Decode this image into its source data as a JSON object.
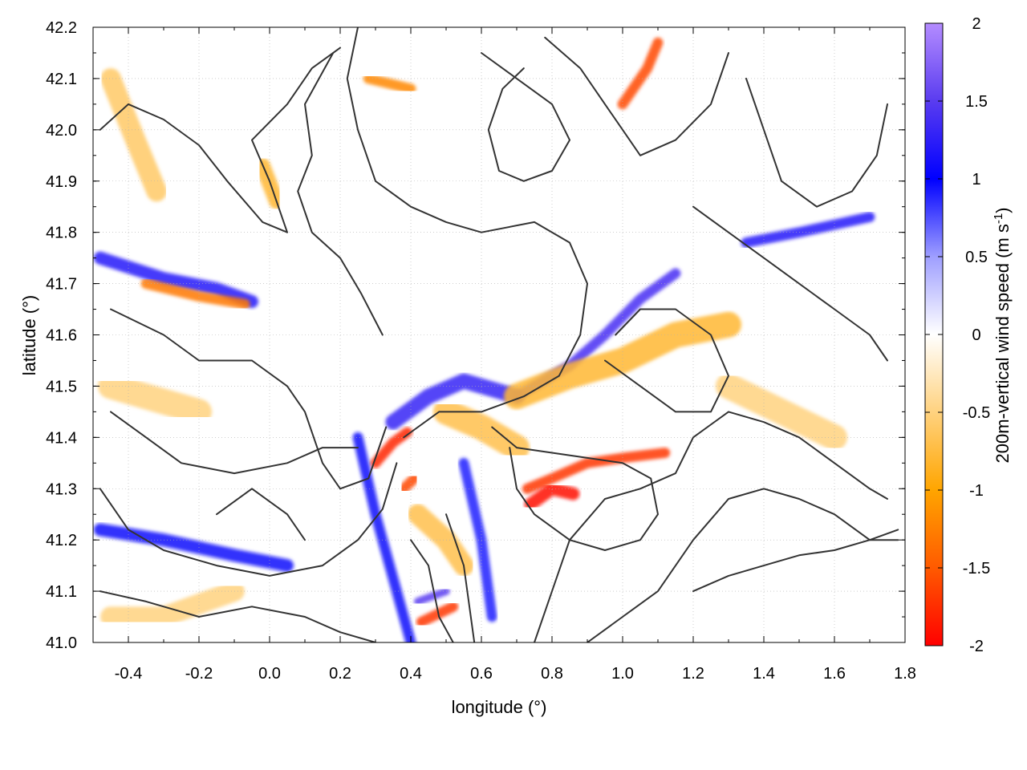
{
  "chart_data": {
    "type": "heatmap",
    "title": "",
    "xlabel": "longitude (°)",
    "ylabel": "latitude (°)",
    "colorbar_label_main": "200m-vertical wind speed (m s",
    "colorbar_label_sup": "-1",
    "colorbar_label_close": ")",
    "xlim": [
      -0.5,
      1.8
    ],
    "ylim": [
      41.0,
      42.2
    ],
    "x_ticks": [
      {
        "value": -0.4,
        "label": "-0.4"
      },
      {
        "value": -0.2,
        "label": "-0.2"
      },
      {
        "value": 0.0,
        "label": "0.0"
      },
      {
        "value": 0.2,
        "label": "0.2"
      },
      {
        "value": 0.4,
        "label": "0.4"
      },
      {
        "value": 0.6,
        "label": "0.6"
      },
      {
        "value": 0.8,
        "label": "0.8"
      },
      {
        "value": 1.0,
        "label": "1.0"
      },
      {
        "value": 1.2,
        "label": "1.2"
      },
      {
        "value": 1.4,
        "label": "1.4"
      },
      {
        "value": 1.6,
        "label": "1.6"
      },
      {
        "value": 1.8,
        "label": "1.8"
      }
    ],
    "y_ticks": [
      {
        "value": 41.0,
        "label": "41.0"
      },
      {
        "value": 41.1,
        "label": "41.1"
      },
      {
        "value": 41.2,
        "label": "41.2"
      },
      {
        "value": 41.3,
        "label": "41.3"
      },
      {
        "value": 41.4,
        "label": "41.4"
      },
      {
        "value": 41.5,
        "label": "41.5"
      },
      {
        "value": 41.6,
        "label": "41.6"
      },
      {
        "value": 41.7,
        "label": "41.7"
      },
      {
        "value": 41.8,
        "label": "41.8"
      },
      {
        "value": 41.9,
        "label": "41.9"
      },
      {
        "value": 42.0,
        "label": "42.0"
      },
      {
        "value": 42.1,
        "label": "42.1"
      },
      {
        "value": 42.2,
        "label": "42.2"
      }
    ],
    "colorbar_range": [
      -2,
      2
    ],
    "colorbar_ticks": [
      {
        "value": 2,
        "label": "2"
      },
      {
        "value": 1.5,
        "label": "1.5"
      },
      {
        "value": 1,
        "label": "1"
      },
      {
        "value": 0.5,
        "label": "0.5"
      },
      {
        "value": 0,
        "label": "0"
      },
      {
        "value": -0.5,
        "label": "-0.5"
      },
      {
        "value": -1,
        "label": "-1"
      },
      {
        "value": -1.5,
        "label": "-1.5"
      },
      {
        "value": -2,
        "label": "-2"
      }
    ],
    "colormap": [
      {
        "value": -2,
        "color": "#ff0000"
      },
      {
        "value": -1.5,
        "color": "#ff5a00"
      },
      {
        "value": -1,
        "color": "#ffa500"
      },
      {
        "value": -0.5,
        "color": "#ffd27f"
      },
      {
        "value": 0,
        "color": "#ffffff"
      },
      {
        "value": 0.5,
        "color": "#9e9eff"
      },
      {
        "value": 1,
        "color": "#0000ff"
      },
      {
        "value": 1.5,
        "color": "#5a3cf0"
      },
      {
        "value": 2,
        "color": "#b48cff"
      }
    ],
    "grid": true,
    "contour_color": "#333333",
    "features": [
      {
        "type": "band",
        "points": [
          [
            -0.48,
            41.75
          ],
          [
            -0.3,
            41.71
          ],
          [
            -0.15,
            41.69
          ],
          [
            -0.05,
            41.665
          ]
        ],
        "value": 1.2,
        "width": 0.025
      },
      {
        "type": "band",
        "points": [
          [
            -0.35,
            41.7
          ],
          [
            -0.2,
            41.675
          ],
          [
            -0.07,
            41.66
          ]
        ],
        "value": -1.3,
        "width": 0.02
      },
      {
        "type": "band",
        "points": [
          [
            -0.48,
            41.22
          ],
          [
            -0.3,
            41.2
          ],
          [
            -0.1,
            41.17
          ],
          [
            0.05,
            41.15
          ]
        ],
        "value": 1.1,
        "width": 0.025
      },
      {
        "type": "band",
        "points": [
          [
            0.35,
            41.43
          ],
          [
            0.45,
            41.48
          ],
          [
            0.55,
            41.51
          ],
          [
            0.7,
            41.48
          ]
        ],
        "value": 1.3,
        "width": 0.03
      },
      {
        "type": "band",
        "points": [
          [
            0.7,
            41.48
          ],
          [
            0.85,
            41.54
          ],
          [
            0.95,
            41.6
          ],
          [
            1.05,
            41.67
          ],
          [
            1.15,
            41.72
          ]
        ],
        "value": 1.4,
        "width": 0.02
      },
      {
        "type": "band",
        "points": [
          [
            0.73,
            41.3
          ],
          [
            0.8,
            41.32
          ],
          [
            0.9,
            41.35
          ],
          [
            1.0,
            41.36
          ],
          [
            1.12,
            41.37
          ]
        ],
        "value": -1.7,
        "width": 0.02
      },
      {
        "type": "band",
        "points": [
          [
            0.74,
            41.27
          ],
          [
            0.8,
            41.3
          ],
          [
            0.86,
            41.29
          ]
        ],
        "value": -1.9,
        "width": 0.025
      },
      {
        "type": "band",
        "points": [
          [
            0.3,
            41.35
          ],
          [
            0.35,
            41.39
          ],
          [
            0.39,
            41.41
          ]
        ],
        "value": -1.8,
        "width": 0.02
      },
      {
        "type": "band",
        "points": [
          [
            0.38,
            41.3
          ],
          [
            0.41,
            41.32
          ]
        ],
        "value": -1.6,
        "width": 0.02
      },
      {
        "type": "band",
        "points": [
          [
            0.43,
            41.04
          ],
          [
            0.52,
            41.07
          ]
        ],
        "value": -1.7,
        "width": 0.02
      },
      {
        "type": "band",
        "points": [
          [
            0.42,
            41.08
          ],
          [
            0.5,
            41.1
          ]
        ],
        "value": 1.5,
        "width": 0.015
      },
      {
        "type": "band",
        "points": [
          [
            1.0,
            42.05
          ],
          [
            1.07,
            42.12
          ],
          [
            1.1,
            42.17
          ]
        ],
        "value": -1.6,
        "width": 0.02
      },
      {
        "type": "band",
        "points": [
          [
            0.28,
            42.1
          ],
          [
            0.4,
            42.08
          ]
        ],
        "value": -1.2,
        "width": 0.02
      },
      {
        "type": "band",
        "points": [
          [
            1.35,
            41.78
          ],
          [
            1.5,
            41.8
          ],
          [
            1.7,
            41.83
          ]
        ],
        "value": 1.2,
        "width": 0.02
      },
      {
        "type": "band",
        "points": [
          [
            0.25,
            41.4
          ],
          [
            0.3,
            41.25
          ],
          [
            0.36,
            41.1
          ],
          [
            0.4,
            41.0
          ]
        ],
        "value": 1.1,
        "width": 0.02
      },
      {
        "type": "band",
        "points": [
          [
            0.55,
            41.35
          ],
          [
            0.6,
            41.2
          ],
          [
            0.63,
            41.05
          ]
        ],
        "value": 0.9,
        "width": 0.02
      },
      {
        "type": "band",
        "points": [
          [
            0.7,
            41.48
          ],
          [
            0.85,
            41.52
          ],
          [
            1.0,
            41.55
          ],
          [
            1.15,
            41.6
          ],
          [
            1.3,
            41.62
          ]
        ],
        "value": -0.8,
        "width": 0.05
      },
      {
        "type": "band",
        "points": [
          [
            0.5,
            41.45
          ],
          [
            0.6,
            41.42
          ],
          [
            0.7,
            41.38
          ]
        ],
        "value": -0.7,
        "width": 0.05
      },
      {
        "type": "band",
        "points": [
          [
            0.42,
            41.25
          ],
          [
            0.5,
            41.2
          ],
          [
            0.55,
            41.15
          ]
        ],
        "value": -0.7,
        "width": 0.04
      },
      {
        "type": "band",
        "points": [
          [
            -0.45,
            41.5
          ],
          [
            -0.35,
            41.48
          ],
          [
            -0.2,
            41.45
          ]
        ],
        "value": -0.5,
        "width": 0.05
      },
      {
        "type": "band",
        "points": [
          [
            1.3,
            41.5
          ],
          [
            1.45,
            41.45
          ],
          [
            1.6,
            41.4
          ]
        ],
        "value": -0.5,
        "width": 0.05
      },
      {
        "type": "band",
        "points": [
          [
            -0.45,
            41.05
          ],
          [
            -0.3,
            41.05
          ],
          [
            -0.1,
            41.1
          ]
        ],
        "value": -0.5,
        "width": 0.04
      },
      {
        "type": "band",
        "points": [
          [
            -0.45,
            42.1
          ],
          [
            -0.38,
            41.98
          ],
          [
            -0.32,
            41.88
          ]
        ],
        "value": -0.6,
        "width": 0.04
      },
      {
        "type": "band",
        "points": [
          [
            -0.02,
            41.93
          ],
          [
            0.02,
            41.86
          ]
        ],
        "value": -0.8,
        "width": 0.03
      }
    ],
    "contours": [
      [
        [
          -0.48,
          42.0
        ],
        [
          -0.4,
          42.05
        ],
        [
          -0.3,
          42.02
        ],
        [
          -0.2,
          41.97
        ],
        [
          -0.12,
          41.9
        ],
        [
          -0.02,
          41.82
        ],
        [
          0.05,
          41.8
        ],
        [
          0.0,
          41.9
        ],
        [
          -0.05,
          41.98
        ],
        [
          0.05,
          42.05
        ],
        [
          0.12,
          42.12
        ],
        [
          0.2,
          42.16
        ]
      ],
      [
        [
          0.25,
          42.2
        ],
        [
          0.22,
          42.1
        ],
        [
          0.25,
          42.0
        ],
        [
          0.3,
          41.9
        ],
        [
          0.4,
          41.85
        ],
        [
          0.5,
          41.82
        ],
        [
          0.6,
          41.8
        ],
        [
          0.75,
          41.82
        ],
        [
          0.85,
          41.78
        ],
        [
          0.9,
          41.7
        ],
        [
          0.88,
          41.6
        ],
        [
          0.82,
          41.52
        ],
        [
          0.72,
          41.48
        ],
        [
          0.6,
          41.45
        ],
        [
          0.48,
          41.45
        ],
        [
          0.38,
          41.4
        ]
      ],
      [
        [
          0.32,
          41.6
        ],
        [
          0.26,
          41.68
        ],
        [
          0.2,
          41.75
        ],
        [
          0.12,
          41.8
        ],
        [
          0.08,
          41.88
        ],
        [
          0.12,
          41.95
        ],
        [
          0.1,
          42.05
        ],
        [
          0.18,
          42.15
        ]
      ],
      [
        [
          -0.45,
          41.65
        ],
        [
          -0.3,
          41.6
        ],
        [
          -0.2,
          41.55
        ],
        [
          -0.05,
          41.55
        ],
        [
          0.05,
          41.5
        ],
        [
          0.1,
          41.45
        ],
        [
          0.15,
          41.35
        ],
        [
          0.2,
          41.3
        ],
        [
          0.28,
          41.32
        ],
        [
          0.33,
          41.42
        ]
      ],
      [
        [
          -0.45,
          41.45
        ],
        [
          -0.35,
          41.4
        ],
        [
          -0.25,
          41.35
        ],
        [
          -0.1,
          41.33
        ],
        [
          0.05,
          41.35
        ],
        [
          0.15,
          41.38
        ],
        [
          0.25,
          41.38
        ]
      ],
      [
        [
          -0.48,
          41.3
        ],
        [
          -0.4,
          41.22
        ],
        [
          -0.3,
          41.18
        ],
        [
          -0.15,
          41.15
        ],
        [
          0.0,
          41.13
        ],
        [
          0.15,
          41.15
        ],
        [
          0.25,
          41.2
        ],
        [
          0.32,
          41.26
        ],
        [
          0.36,
          41.35
        ]
      ],
      [
        [
          -0.48,
          41.1
        ],
        [
          -0.35,
          41.08
        ],
        [
          -0.2,
          41.05
        ],
        [
          -0.05,
          41.07
        ],
        [
          0.1,
          41.05
        ],
        [
          0.2,
          41.02
        ],
        [
          0.3,
          41.0
        ]
      ],
      [
        [
          0.4,
          41.2
        ],
        [
          0.45,
          41.15
        ],
        [
          0.48,
          41.05
        ],
        [
          0.52,
          41.0
        ]
      ],
      [
        [
          0.5,
          41.25
        ],
        [
          0.55,
          41.15
        ],
        [
          0.57,
          41.05
        ],
        [
          0.58,
          41.0
        ]
      ],
      [
        [
          0.63,
          41.42
        ],
        [
          0.7,
          41.38
        ],
        [
          0.8,
          41.37
        ],
        [
          0.9,
          41.36
        ],
        [
          1.0,
          41.35
        ],
        [
          1.08,
          41.32
        ],
        [
          1.1,
          41.25
        ],
        [
          1.05,
          41.2
        ],
        [
          0.95,
          41.18
        ],
        [
          0.85,
          41.2
        ],
        [
          0.75,
          41.25
        ],
        [
          0.7,
          41.3
        ],
        [
          0.68,
          41.38
        ]
      ],
      [
        [
          0.75,
          41.0
        ],
        [
          0.8,
          41.1
        ],
        [
          0.85,
          41.2
        ],
        [
          0.95,
          41.28
        ],
        [
          1.05,
          41.3
        ],
        [
          1.15,
          41.33
        ],
        [
          1.2,
          41.4
        ],
        [
          1.3,
          41.45
        ],
        [
          1.4,
          41.43
        ],
        [
          1.5,
          41.4
        ],
        [
          1.6,
          41.35
        ],
        [
          1.7,
          41.3
        ],
        [
          1.75,
          41.28
        ]
      ],
      [
        [
          0.9,
          41.0
        ],
        [
          1.0,
          41.05
        ],
        [
          1.1,
          41.1
        ],
        [
          1.2,
          41.2
        ],
        [
          1.3,
          41.28
        ],
        [
          1.4,
          41.3
        ],
        [
          1.5,
          41.28
        ],
        [
          1.6,
          41.25
        ],
        [
          1.7,
          41.2
        ],
        [
          1.78,
          41.2
        ]
      ],
      [
        [
          1.2,
          41.1
        ],
        [
          1.3,
          41.13
        ],
        [
          1.4,
          41.15
        ],
        [
          1.5,
          41.17
        ],
        [
          1.6,
          41.18
        ],
        [
          1.7,
          41.2
        ],
        [
          1.78,
          41.22
        ]
      ],
      [
        [
          0.6,
          42.15
        ],
        [
          0.7,
          42.1
        ],
        [
          0.8,
          42.05
        ],
        [
          0.85,
          41.98
        ],
        [
          0.8,
          41.92
        ],
        [
          0.72,
          41.9
        ],
        [
          0.65,
          41.92
        ],
        [
          0.62,
          42.0
        ],
        [
          0.66,
          42.08
        ],
        [
          0.72,
          42.12
        ]
      ],
      [
        [
          0.78,
          42.18
        ],
        [
          0.88,
          42.12
        ],
        [
          0.95,
          42.05
        ],
        [
          1.0,
          42.0
        ],
        [
          1.05,
          41.95
        ],
        [
          1.15,
          41.98
        ],
        [
          1.25,
          42.05
        ],
        [
          1.3,
          42.15
        ]
      ],
      [
        [
          1.35,
          42.1
        ],
        [
          1.4,
          42.0
        ],
        [
          1.45,
          41.9
        ],
        [
          1.55,
          41.85
        ],
        [
          1.65,
          41.88
        ],
        [
          1.72,
          41.95
        ],
        [
          1.75,
          42.05
        ]
      ],
      [
        [
          1.2,
          41.85
        ],
        [
          1.3,
          41.8
        ],
        [
          1.4,
          41.75
        ],
        [
          1.5,
          41.7
        ],
        [
          1.6,
          41.65
        ],
        [
          1.7,
          41.6
        ],
        [
          1.75,
          41.55
        ]
      ],
      [
        [
          -0.15,
          41.25
        ],
        [
          -0.05,
          41.3
        ],
        [
          0.05,
          41.25
        ],
        [
          0.1,
          41.2
        ]
      ],
      [
        [
          0.95,
          41.55
        ],
        [
          1.05,
          41.5
        ],
        [
          1.15,
          41.45
        ],
        [
          1.25,
          41.45
        ],
        [
          1.3,
          41.52
        ],
        [
          1.25,
          41.6
        ],
        [
          1.15,
          41.65
        ],
        [
          1.05,
          41.65
        ],
        [
          0.98,
          41.6
        ]
      ]
    ]
  }
}
